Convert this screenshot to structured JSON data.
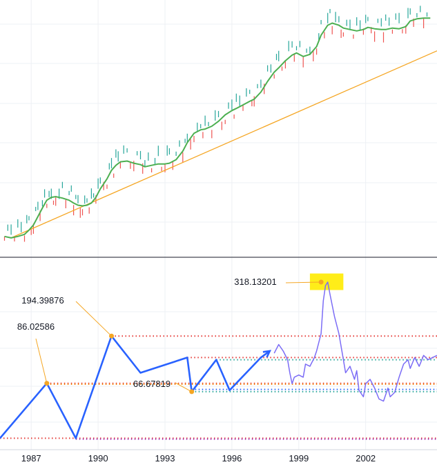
{
  "chart_data": {
    "type": "line",
    "xaxis": {
      "ticks": [
        {
          "label": "1987",
          "x": 1987
        },
        {
          "label": "1990",
          "x": 1990
        },
        {
          "label": "1993",
          "x": 1993
        },
        {
          "label": "1996",
          "x": 1996
        },
        {
          "label": "1999",
          "x": 1999
        },
        {
          "label": "2002",
          "x": 2002
        }
      ],
      "xlim": [
        1985.6,
        2005.2
      ]
    },
    "price_panel": {
      "series": [
        {
          "values": [
            [
              1985.8,
              0.05
            ],
            [
              1986.1,
              0.03
            ],
            [
              1986.4,
              0.05
            ],
            [
              1986.7,
              0.08
            ],
            [
              1986.9,
              0.14
            ],
            [
              1987.1,
              0.21
            ],
            [
              1987.3,
              0.33
            ],
            [
              1987.5,
              0.45
            ],
            [
              1987.7,
              0.56
            ],
            [
              1987.9,
              0.6
            ],
            [
              1988.1,
              0.61
            ],
            [
              1988.4,
              0.59
            ],
            [
              1988.7,
              0.56
            ],
            [
              1988.9,
              0.52
            ],
            [
              1989.1,
              0.49
            ],
            [
              1989.3,
              0.48
            ],
            [
              1989.5,
              0.49
            ],
            [
              1989.7,
              0.52
            ],
            [
              1989.9,
              0.6
            ],
            [
              1990.1,
              0.72
            ],
            [
              1990.4,
              0.86
            ],
            [
              1990.6,
              0.98
            ],
            [
              1990.8,
              1.05
            ],
            [
              1991.0,
              1.1
            ],
            [
              1991.3,
              1.11
            ],
            [
              1991.6,
              1.08
            ],
            [
              1991.9,
              1.06
            ],
            [
              1992.1,
              1.03
            ],
            [
              1992.4,
              1.05
            ],
            [
              1992.7,
              1.07
            ],
            [
              1993.0,
              1.07
            ],
            [
              1993.2,
              1.08
            ],
            [
              1993.5,
              1.13
            ],
            [
              1993.8,
              1.25
            ],
            [
              1994.0,
              1.37
            ],
            [
              1994.3,
              1.5
            ],
            [
              1994.6,
              1.55
            ],
            [
              1994.8,
              1.56
            ],
            [
              1995.1,
              1.6
            ],
            [
              1995.4,
              1.67
            ],
            [
              1995.7,
              1.76
            ],
            [
              1996.0,
              1.82
            ],
            [
              1996.2,
              1.85
            ],
            [
              1996.5,
              1.9
            ],
            [
              1996.8,
              1.95
            ],
            [
              1997.0,
              1.98
            ],
            [
              1997.3,
              2.08
            ],
            [
              1997.6,
              2.23
            ],
            [
              1997.9,
              2.36
            ],
            [
              1998.1,
              2.42
            ],
            [
              1998.4,
              2.52
            ],
            [
              1998.7,
              2.6
            ],
            [
              1998.9,
              2.63
            ],
            [
              1999.2,
              2.58
            ],
            [
              1999.5,
              2.61
            ],
            [
              1999.8,
              2.72
            ],
            [
              2000.0,
              2.88
            ],
            [
              2000.3,
              3.02
            ],
            [
              2000.5,
              3.05
            ],
            [
              2000.8,
              3.02
            ],
            [
              2001.0,
              2.98
            ],
            [
              2001.3,
              2.96
            ],
            [
              2001.6,
              2.94
            ],
            [
              2001.9,
              2.96
            ],
            [
              2002.1,
              2.99
            ],
            [
              2002.4,
              2.97
            ],
            [
              2002.7,
              2.96
            ],
            [
              2002.9,
              2.96
            ],
            [
              2003.2,
              2.98
            ],
            [
              2003.5,
              2.97
            ],
            [
              2003.8,
              3.0
            ],
            [
              2004.0,
              3.08
            ],
            [
              2004.3,
              3.11
            ],
            [
              2004.6,
              3.12
            ],
            [
              2004.9,
              3.12
            ]
          ],
          "color": "#4caf50"
        },
        {
          "values": [
            [
              1986.1,
              0.03
            ],
            [
              2005.2,
              2.66
            ]
          ],
          "color": "#f5a623"
        }
      ]
    },
    "oscillator_panel": {
      "annotations": [
        {
          "text": "86.02586",
          "value": 86.02586,
          "x": 1987.7
        },
        {
          "text": "194.39876",
          "value": 194.39876,
          "x": 1990.6
        },
        {
          "text": "66.67819",
          "value": 66.67819,
          "x": 1994.2
        },
        {
          "text": "318.13201",
          "value": 318.13201,
          "x": 2000.0
        }
      ],
      "pattern_line": {
        "color": "#2962ff",
        "values": [
          [
            1985.6,
            -40
          ],
          [
            1987.7,
            86.02586
          ],
          [
            1989.0,
            -40
          ],
          [
            1990.6,
            194.39876
          ],
          [
            1991.9,
            110
          ],
          [
            1994.0,
            145
          ],
          [
            1994.2,
            66.67819
          ],
          [
            1995.3,
            140
          ],
          [
            1995.9,
            70
          ],
          [
            1997.3,
            145
          ],
          [
            1997.7,
            160
          ]
        ]
      },
      "oscillator_line": {
        "color": "#7b6cf6",
        "values": [
          [
            1997.9,
            155
          ],
          [
            1998.1,
            175
          ],
          [
            1998.3,
            160
          ],
          [
            1998.5,
            140
          ],
          [
            1998.6,
            110
          ],
          [
            1998.7,
            85
          ],
          [
            1998.8,
            100
          ],
          [
            1999.0,
            105
          ],
          [
            1999.2,
            100
          ],
          [
            1999.3,
            130
          ],
          [
            1999.5,
            125
          ],
          [
            1999.7,
            145
          ],
          [
            1999.8,
            160
          ],
          [
            2000.0,
            200
          ],
          [
            2000.1,
            275
          ],
          [
            2000.2,
            310
          ],
          [
            2000.3,
            318.13201
          ],
          [
            2000.4,
            290
          ],
          [
            2000.6,
            240
          ],
          [
            2000.8,
            200
          ],
          [
            2001.0,
            140
          ],
          [
            2001.1,
            110
          ],
          [
            2001.3,
            125
          ],
          [
            2001.5,
            95
          ],
          [
            2001.6,
            115
          ],
          [
            2001.7,
            70
          ],
          [
            2001.9,
            55
          ],
          [
            2002.0,
            85
          ],
          [
            2002.2,
            95
          ],
          [
            2002.4,
            75
          ],
          [
            2002.6,
            50
          ],
          [
            2002.8,
            45
          ],
          [
            2003.0,
            75
          ],
          [
            2003.1,
            55
          ],
          [
            2003.3,
            65
          ],
          [
            2003.5,
            100
          ],
          [
            2003.7,
            130
          ],
          [
            2003.9,
            140
          ],
          [
            2004.0,
            120
          ],
          [
            2004.2,
            145
          ],
          [
            2004.4,
            125
          ],
          [
            2004.6,
            150
          ],
          [
            2004.8,
            140
          ],
          [
            2005.2,
            150
          ]
        ]
      },
      "reference_lines": [
        {
          "value": 194.39876,
          "color": "#e53935",
          "from": 1990.6
        },
        {
          "value": 145,
          "color": "#e53935",
          "from": 1994.0
        },
        {
          "value": 140,
          "color": "#26a69a",
          "from": 1995.3
        },
        {
          "value": 86.02586,
          "color": "#e53935",
          "from": 1987.7
        },
        {
          "value": 84,
          "color": "#f57c00",
          "from": 1987.7
        },
        {
          "value": 72,
          "color": "#2962ff",
          "from": 1994.2
        },
        {
          "value": 66.67819,
          "color": "#26a69a",
          "from": 1994.2
        },
        {
          "value": -40,
          "color": "#e53935",
          "from": 1985.6
        },
        {
          "value": -42,
          "color": "#9c27b0",
          "from": 1989.0
        }
      ],
      "highlight_color": "#ffeb00"
    }
  }
}
